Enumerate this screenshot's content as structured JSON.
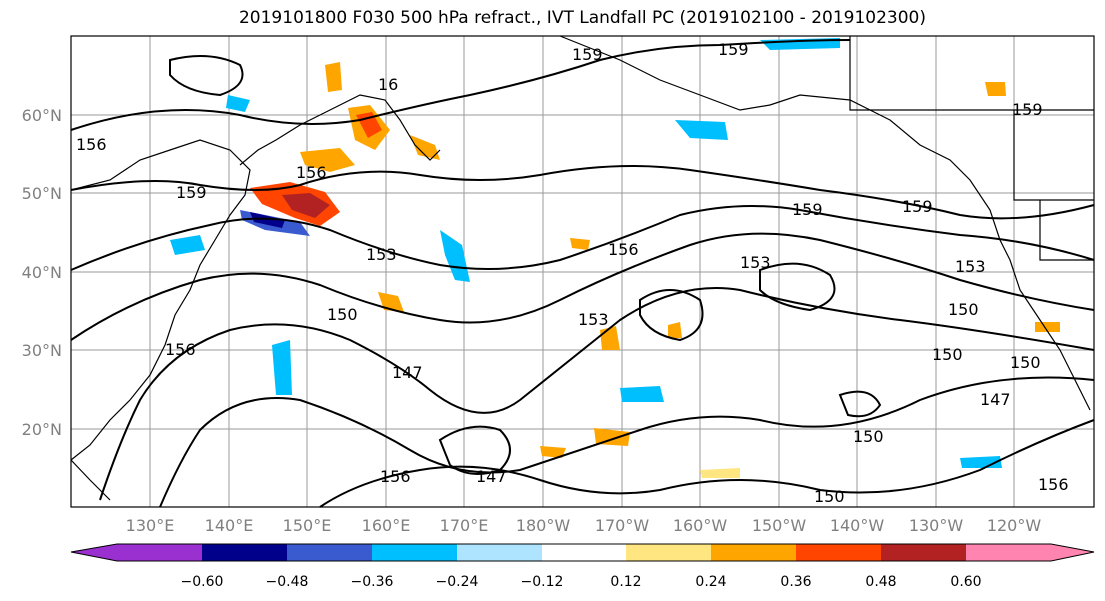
{
  "title": "2019101800 F030 500 hPa refract., IVT Landfall PC (2019102100 - 2019102300)",
  "lat_labels": [
    "60°N",
    "50°N",
    "40°N",
    "30°N",
    "20°N"
  ],
  "lon_labels": [
    "130°E",
    "140°E",
    "150°E",
    "160°E",
    "170°E",
    "180°W",
    "170°W",
    "160°W",
    "150°W",
    "140°W",
    "130°W",
    "120°W"
  ],
  "contour_labels": {
    "153": "153",
    "156": "156",
    "159": "159",
    "150": "150",
    "147": "147",
    "16": "16"
  },
  "colorbar": {
    "tick_labels": [
      "−0.60",
      "−0.48",
      "−0.36",
      "−0.24",
      "−0.12",
      "0.12",
      "0.24",
      "0.36",
      "0.48",
      "0.60"
    ],
    "colors": [
      "#9b30d0",
      "#00008b",
      "#3a5ad0",
      "#00bfff",
      "#aee4ff",
      "#ffffff",
      "#ffe680",
      "#ffa500",
      "#ff4500",
      "#b22222",
      "#ff85b0"
    ]
  }
}
